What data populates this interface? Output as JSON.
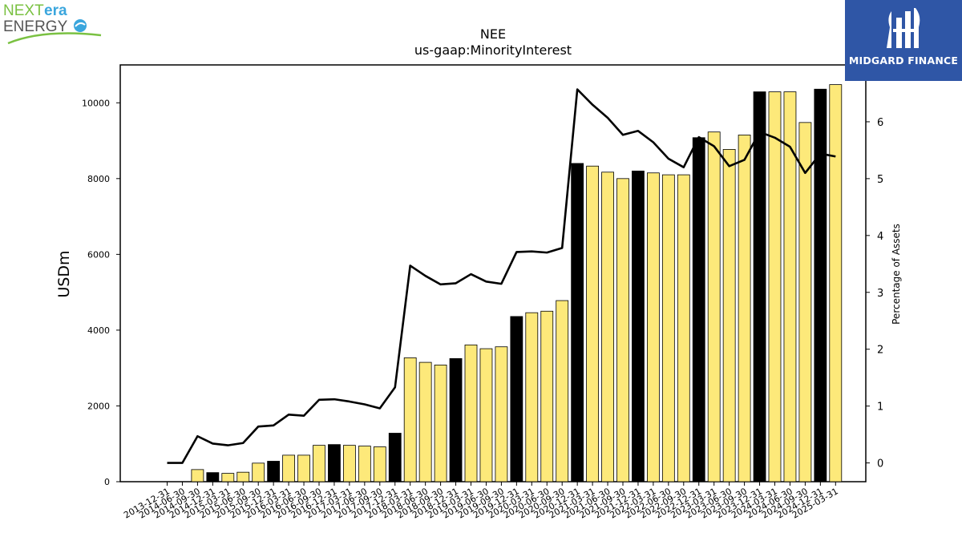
{
  "logos": {
    "left": {
      "part1": "NEXT",
      "part2": "era",
      "part3": "ENERGY"
    },
    "right": {
      "text": "MIDGARD FINANCE"
    }
  },
  "colors": {
    "bar_yellow": "#fde97a",
    "bar_black": "#000000",
    "line": "#000000",
    "logo_green": "#7ac142",
    "logo_blue": "#3aa6dd",
    "logo_navy": "#2f56a6",
    "logo_gray": "#555555"
  },
  "chart_data": {
    "type": "bar",
    "title": "NEE",
    "subtitle": "us-gaap:MinorityInterest",
    "ylabel": "USDm",
    "y2label": "Percentage of Assets",
    "ylim": [
      0,
      11000
    ],
    "y2lim": [
      -0.33,
      7.0
    ],
    "yticks": [
      0,
      2000,
      4000,
      6000,
      8000,
      10000
    ],
    "y2ticks": [
      0,
      1,
      2,
      3,
      4,
      5,
      6
    ],
    "categories": [
      "2013-12-31",
      "2014-06-30",
      "2014-09-30",
      "2014-12-31",
      "2015-03-31",
      "2015-06-30",
      "2015-09-30",
      "2015-12-31",
      "2016-03-31",
      "2016-06-30",
      "2016-09-30",
      "2016-12-31",
      "2017-03-31",
      "2017-06-30",
      "2017-09-30",
      "2017-12-31",
      "2018-03-31",
      "2018-06-30",
      "2018-09-30",
      "2018-12-31",
      "2019-03-31",
      "2019-06-30",
      "2019-09-30",
      "2019-12-31",
      "2020-03-31",
      "2020-06-30",
      "2020-09-30",
      "2020-12-31",
      "2021-03-31",
      "2021-06-30",
      "2021-09-30",
      "2021-12-31",
      "2022-03-31",
      "2022-06-30",
      "2022-09-30",
      "2022-12-31",
      "2023-03-31",
      "2023-06-30",
      "2023-09-30",
      "2023-12-31",
      "2024-03-31",
      "2024-06-30",
      "2024-09-30",
      "2024-12-31",
      "2025-03-31"
    ],
    "series": [
      {
        "kind": "bar",
        "axis": "left",
        "values": [
          0,
          0,
          320,
          240,
          220,
          250,
          490,
          540,
          700,
          700,
          960,
          980,
          960,
          940,
          920,
          1280,
          3270,
          3150,
          3080,
          3250,
          3610,
          3510,
          3560,
          4360,
          4460,
          4500,
          4780,
          8400,
          8330,
          8170,
          8000,
          8200,
          8150,
          8100,
          8100,
          9080,
          9230,
          8770,
          9150,
          10290,
          10290,
          10290,
          9480,
          10360,
          10480
        ],
        "highlight": [
          false,
          false,
          false,
          true,
          false,
          false,
          false,
          true,
          false,
          false,
          false,
          true,
          false,
          false,
          false,
          true,
          false,
          false,
          false,
          true,
          false,
          false,
          false,
          true,
          false,
          false,
          false,
          true,
          false,
          false,
          false,
          true,
          false,
          false,
          false,
          true,
          false,
          false,
          false,
          true,
          false,
          false,
          false,
          true,
          false
        ]
      },
      {
        "kind": "line",
        "axis": "right",
        "values": [
          0.0,
          0.0,
          0.47,
          0.34,
          0.31,
          0.35,
          0.64,
          0.66,
          0.85,
          0.83,
          1.11,
          1.12,
          1.08,
          1.03,
          0.96,
          1.33,
          3.47,
          3.29,
          3.14,
          3.16,
          3.32,
          3.19,
          3.15,
          3.71,
          3.72,
          3.7,
          3.78,
          6.57,
          6.3,
          6.07,
          5.77,
          5.84,
          5.64,
          5.35,
          5.2,
          5.73,
          5.57,
          5.22,
          5.33,
          5.82,
          5.72,
          5.56,
          5.1,
          5.44,
          5.39
        ]
      }
    ],
    "grid": false,
    "legend": "none"
  }
}
